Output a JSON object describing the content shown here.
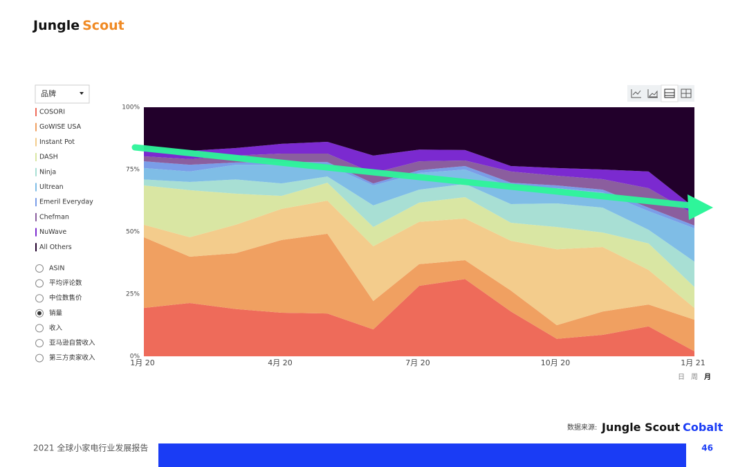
{
  "header": {
    "logo_a": "Jungle",
    "logo_b": "Scout"
  },
  "sidebar": {
    "dropdown": "品牌",
    "radios": [
      {
        "label": "ASIN"
      },
      {
        "label": "平均评论数"
      },
      {
        "label": "中位数售价"
      },
      {
        "label": "销量",
        "selected": true
      },
      {
        "label": "收入"
      },
      {
        "label": "亚马逊自营收入"
      },
      {
        "label": "第三方卖家收入"
      }
    ]
  },
  "chart_data": {
    "type": "stacked_area",
    "categories": [
      "1月 20",
      null,
      null,
      "4月 20",
      null,
      null,
      "7月 20",
      null,
      null,
      "10月 20",
      null,
      null,
      "1月 21"
    ],
    "ylim": [
      0,
      100
    ],
    "yticks": [
      {
        "value": 0,
        "label": "0%"
      },
      {
        "value": 25,
        "label": "25%"
      },
      {
        "value": 50,
        "label": "50%"
      },
      {
        "value": 75,
        "label": "75%"
      },
      {
        "value": 100,
        "label": "100%"
      }
    ],
    "series": [
      {
        "name": "COSORI",
        "color": "#ee6b5a",
        "values": [
          19.4,
          21.4,
          19,
          17.5,
          17.2,
          10.8,
          28.3,
          31,
          18,
          7,
          8.6,
          12,
          2
        ]
      },
      {
        "name": "GoWISE USA",
        "color": "#f0a061",
        "values": [
          28.4,
          18.6,
          22.4,
          29.2,
          32,
          11.4,
          8.7,
          7.6,
          8.4,
          5.5,
          9.4,
          8.8,
          12.7
        ]
      },
      {
        "name": "Instant Pot",
        "color": "#f3cc8c",
        "values": [
          5,
          7.8,
          11.4,
          12.5,
          13.3,
          22,
          17,
          16.7,
          20,
          30.5,
          25.9,
          13.9,
          4.7
        ]
      },
      {
        "name": "DASH",
        "color": "#d9e6a3",
        "values": [
          15.8,
          18.9,
          12.5,
          5.2,
          7.2,
          7.7,
          7.7,
          8.6,
          7.2,
          8.9,
          5.8,
          10.6,
          8.4
        ]
      },
      {
        "name": "Ninja",
        "color": "#a8dfd4",
        "values": [
          2.4,
          3.3,
          5.7,
          5,
          2.5,
          8.7,
          5.2,
          5.3,
          7.5,
          9.5,
          10,
          5.5,
          10.2
        ]
      },
      {
        "name": "Ultrean",
        "color": "#7fbde6",
        "values": [
          4.6,
          4.2,
          5.9,
          7.5,
          4.7,
          8,
          6.7,
          5.8,
          6.9,
          6.1,
          6.1,
          7.5,
          13.4
        ]
      },
      {
        "name": "Emeril Everyday",
        "color": "#7a9de8",
        "values": [
          2.7,
          2.7,
          0.9,
          1.1,
          1.1,
          0.8,
          1.1,
          1.4,
          1.7,
          1.1,
          1.1,
          1.4,
          1.1
        ]
      },
      {
        "name": "Chefman",
        "color": "#8b5e9e",
        "values": [
          2,
          2.3,
          2.8,
          3.4,
          3.4,
          4.2,
          3.6,
          2.2,
          4.5,
          3.9,
          4.2,
          7.8,
          4.4
        ]
      },
      {
        "name": "NuWave",
        "color": "#7b2ad0",
        "values": [
          2.7,
          3.3,
          3,
          3.9,
          4.7,
          7,
          4.7,
          4.2,
          2.2,
          3.1,
          3.9,
          6.7,
          2.8
        ]
      },
      {
        "name": "All Others",
        "color": "#22002b",
        "values": [
          17,
          17.5,
          16.4,
          14.7,
          13.9,
          19.4,
          17,
          17.2,
          23.6,
          24.4,
          25,
          25.8,
          40.3
        ]
      }
    ]
  },
  "periods": [
    {
      "label": "日"
    },
    {
      "label": "周"
    },
    {
      "label": "月",
      "active": true
    }
  ],
  "footer": {
    "source": "数据来源:",
    "brand_a": "Jungle Scout",
    "brand_b": "Cobalt",
    "report": "2021 全球小家电行业发展报告",
    "page": "46"
  }
}
